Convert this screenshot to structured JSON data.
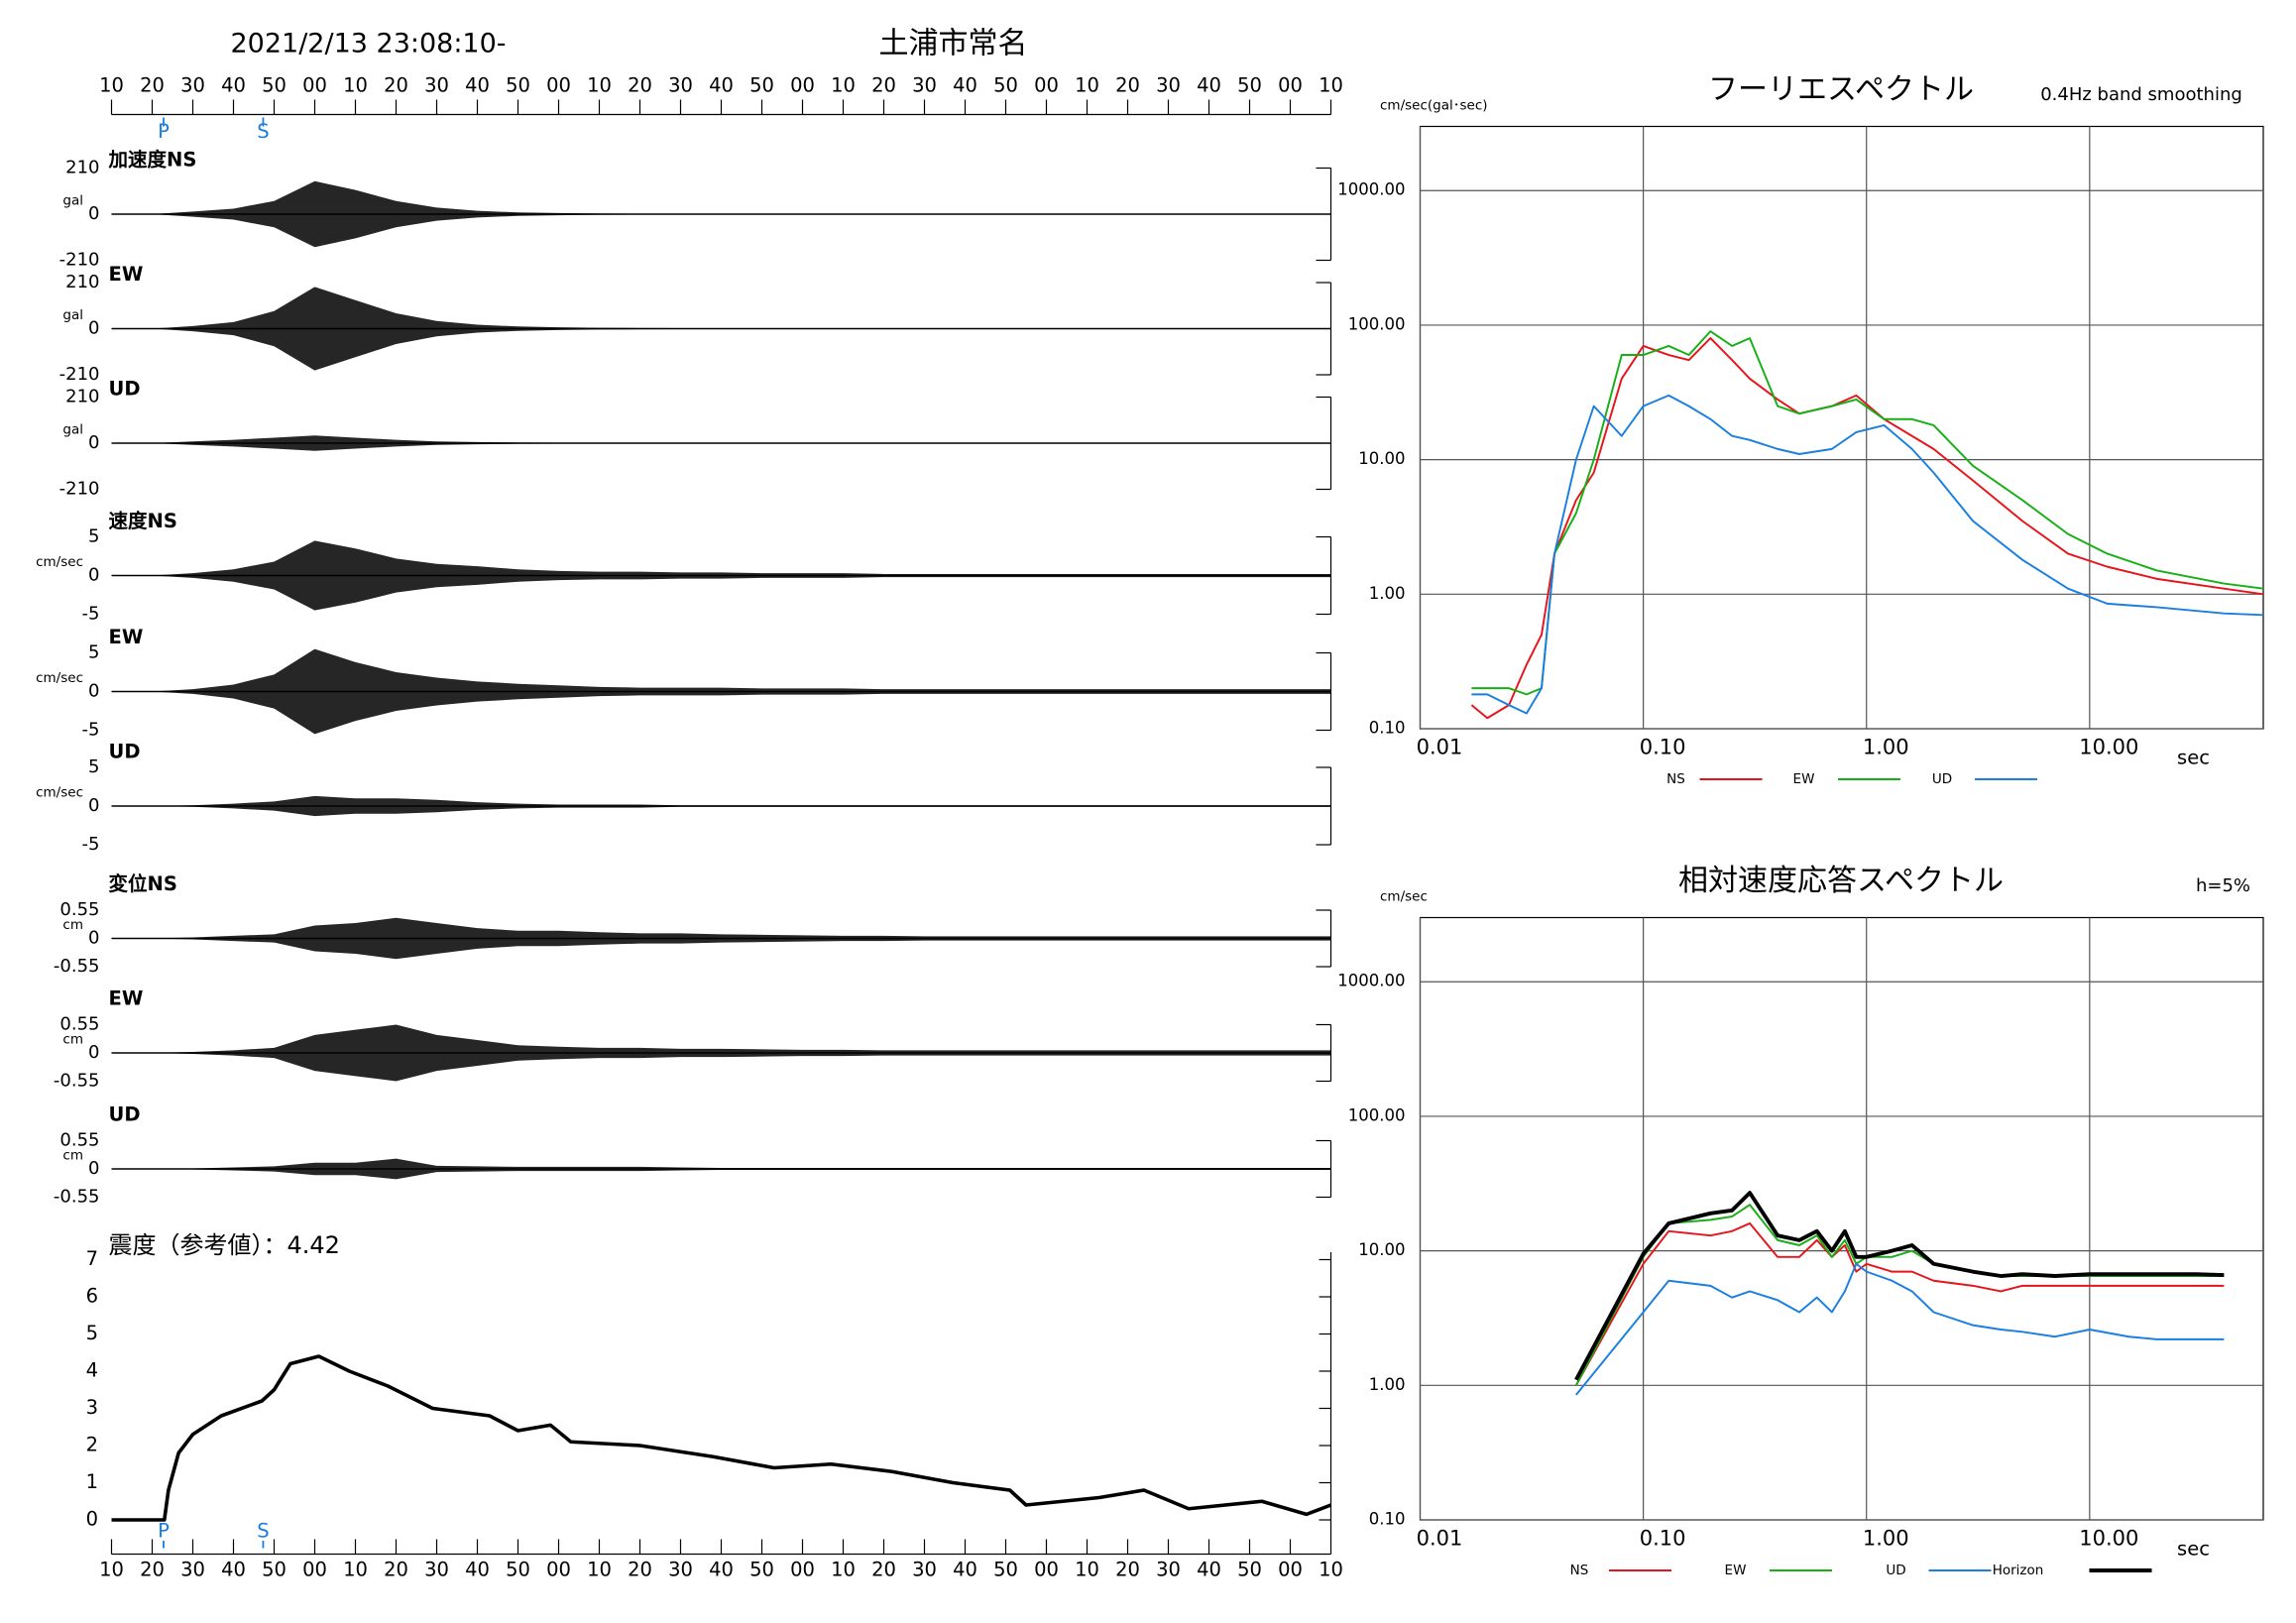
{
  "chart_data": [
    {
      "type": "waveform",
      "title": "土浦市常名",
      "subtitle": "2021/2/13 23:08:10-",
      "xlim": [
        0,
        300
      ],
      "xticks": [
        {
          "value": 0,
          "label": "10"
        },
        {
          "value": 10,
          "label": "20"
        },
        {
          "value": 20,
          "label": "30"
        },
        {
          "value": 30,
          "label": "40"
        },
        {
          "value": 40,
          "label": "50"
        },
        {
          "value": 50,
          "label": "00"
        },
        {
          "value": 60,
          "label": "10"
        },
        {
          "value": 70,
          "label": "20"
        },
        {
          "value": 80,
          "label": "30"
        },
        {
          "value": 90,
          "label": "40"
        },
        {
          "value": 100,
          "label": "50"
        },
        {
          "value": 110,
          "label": "00"
        },
        {
          "value": 120,
          "label": "10"
        },
        {
          "value": 130,
          "label": "20"
        },
        {
          "value": 140,
          "label": "30"
        },
        {
          "value": 150,
          "label": "40"
        },
        {
          "value": 160,
          "label": "50"
        },
        {
          "value": 170,
          "label": "00"
        },
        {
          "value": 180,
          "label": "10"
        },
        {
          "value": 190,
          "label": "20"
        },
        {
          "value": 200,
          "label": "30"
        },
        {
          "value": 210,
          "label": "40"
        },
        {
          "value": 220,
          "label": "50"
        },
        {
          "value": 230,
          "label": "00"
        },
        {
          "value": 240,
          "label": "10"
        },
        {
          "value": 250,
          "label": "20"
        },
        {
          "value": 260,
          "label": "30"
        },
        {
          "value": 270,
          "label": "40"
        },
        {
          "value": 280,
          "label": "50"
        },
        {
          "value": 290,
          "label": "00"
        },
        {
          "value": 300,
          "label": "10"
        }
      ],
      "markers": [
        {
          "label": "P",
          "value": 12.8
        },
        {
          "label": "S",
          "value": 37.3
        }
      ],
      "marker_color": "#1a7fe0",
      "color": "#000000",
      "x": [
        0,
        10,
        20,
        30,
        40,
        50,
        60,
        70,
        80,
        90,
        100,
        110,
        120,
        130,
        140,
        150,
        160,
        170,
        180,
        190,
        200,
        210,
        220,
        230,
        240,
        250,
        260,
        270,
        280,
        290,
        300
      ],
      "traces": [
        {
          "name": "加速度NS",
          "unit": "gal",
          "ylim": [
            -210,
            210
          ],
          "yticks": [
            210,
            0,
            -210
          ],
          "values": [
            0,
            0,
            12,
            25,
            60,
            150,
            110,
            60,
            30,
            15,
            8,
            5,
            3,
            2,
            1.5,
            1,
            1,
            0.5,
            0.5,
            0.5,
            0.5,
            0.5,
            0.5,
            0.5,
            0.5,
            0.5,
            0.5,
            0.5,
            0.5,
            0.5,
            0.5
          ]
        },
        {
          "name": "EW",
          "unit": "gal",
          "ylim": [
            -210,
            210
          ],
          "yticks": [
            210,
            0,
            -210
          ],
          "values": [
            0,
            0,
            12,
            30,
            80,
            190,
            130,
            70,
            35,
            18,
            10,
            6,
            4,
            3,
            2,
            1.5,
            1,
            1,
            0.5,
            0.5,
            0.5,
            0.5,
            0.5,
            0.5,
            0.5,
            0.5,
            0.5,
            0.5,
            0.5,
            0.5,
            0.5
          ]
        },
        {
          "name": "UD",
          "unit": "gal",
          "ylim": [
            -210,
            210
          ],
          "yticks": [
            210,
            0,
            -210
          ],
          "values": [
            0,
            0,
            8,
            15,
            25,
            35,
            25,
            15,
            8,
            5,
            3,
            2,
            1,
            1,
            0.5,
            0.5,
            0.5,
            0.5,
            0.5,
            0.5,
            0.5,
            0.5,
            0.5,
            0.5,
            0.5,
            0.5,
            0.5,
            0.5,
            0.5,
            0.5,
            0.5
          ]
        },
        {
          "name": "速度NS",
          "unit": "cm/sec",
          "ylim": [
            -5,
            5
          ],
          "yticks": [
            5,
            0,
            -5
          ],
          "values": [
            0,
            0,
            0.3,
            0.8,
            1.8,
            4.5,
            3.5,
            2.2,
            1.5,
            1.2,
            0.8,
            0.6,
            0.5,
            0.5,
            0.4,
            0.4,
            0.3,
            0.3,
            0.3,
            0.2,
            0.2,
            0.2,
            0.2,
            0.2,
            0.2,
            0.2,
            0.2,
            0.2,
            0.2,
            0.2,
            0.2
          ]
        },
        {
          "name": "EW",
          "unit": "cm/sec",
          "ylim": [
            -5,
            5
          ],
          "yticks": [
            5,
            0,
            -5
          ],
          "values": [
            0,
            0,
            0.3,
            0.9,
            2.2,
            5.5,
            3.8,
            2.5,
            1.8,
            1.3,
            1,
            0.8,
            0.6,
            0.5,
            0.5,
            0.5,
            0.4,
            0.4,
            0.4,
            0.3,
            0.3,
            0.3,
            0.3,
            0.3,
            0.3,
            0.3,
            0.3,
            0.3,
            0.3,
            0.3,
            0.3
          ]
        },
        {
          "name": "UD",
          "unit": "cm/sec",
          "ylim": [
            -5,
            5
          ],
          "yticks": [
            5,
            0,
            -5
          ],
          "values": [
            0,
            0,
            0.1,
            0.3,
            0.6,
            1.3,
            1,
            1,
            0.8,
            0.5,
            0.3,
            0.2,
            0.2,
            0.2,
            0.1,
            0.1,
            0.1,
            0.1,
            0.1,
            0.1,
            0.1,
            0.1,
            0.1,
            0.1,
            0.1,
            0.1,
            0.1,
            0.1,
            0.1,
            0.1,
            0.1
          ]
        },
        {
          "name": "変位NS",
          "unit": "cm",
          "ylim": [
            -0.55,
            0.55
          ],
          "yticks": [
            0.55,
            0,
            -0.55
          ],
          "values": [
            0,
            0,
            0.02,
            0.05,
            0.08,
            0.25,
            0.3,
            0.4,
            0.3,
            0.2,
            0.15,
            0.15,
            0.12,
            0.1,
            0.1,
            0.08,
            0.07,
            0.06,
            0.05,
            0.05,
            0.04,
            0.04,
            0.04,
            0.04,
            0.04,
            0.04,
            0.04,
            0.04,
            0.04,
            0.04,
            0.04
          ]
        },
        {
          "name": "EW",
          "unit": "cm",
          "ylim": [
            -0.55,
            0.55
          ],
          "yticks": [
            0.55,
            0,
            -0.55
          ],
          "values": [
            0,
            0,
            0.02,
            0.05,
            0.1,
            0.35,
            0.45,
            0.55,
            0.35,
            0.25,
            0.15,
            0.12,
            0.1,
            0.1,
            0.08,
            0.08,
            0.07,
            0.06,
            0.06,
            0.05,
            0.05,
            0.05,
            0.05,
            0.05,
            0.05,
            0.05,
            0.05,
            0.05,
            0.05,
            0.05,
            0.05
          ]
        },
        {
          "name": "UD",
          "unit": "cm",
          "ylim": [
            -0.55,
            0.55
          ],
          "yticks": [
            0.55,
            0,
            -0.55
          ],
          "values": [
            0,
            0,
            0.01,
            0.03,
            0.05,
            0.12,
            0.12,
            0.2,
            0.06,
            0.05,
            0.04,
            0.04,
            0.04,
            0.04,
            0.03,
            0.02,
            0.02,
            0.02,
            0.02,
            0.02,
            0.02,
            0.02,
            0.02,
            0.02,
            0.02,
            0.02,
            0.02,
            0.02,
            0.02,
            0.02,
            0.02
          ]
        }
      ]
    },
    {
      "type": "line",
      "title": "震度（参考値）：4.42",
      "color": "#000000",
      "ylim": [
        0,
        7
      ],
      "yticks": [
        0,
        1,
        2,
        3,
        4,
        5,
        6,
        7
      ],
      "x": [
        0,
        13,
        14,
        16.5,
        20,
        27,
        37,
        40,
        44,
        51,
        58.5,
        68,
        79,
        93,
        100,
        108,
        113,
        130,
        148,
        163,
        177,
        192,
        207,
        221,
        225,
        243,
        254,
        265,
        283,
        294,
        300
      ],
      "values": [
        0,
        0,
        0.8,
        1.8,
        2.3,
        2.8,
        3.2,
        3.5,
        4.2,
        4.4,
        4.0,
        3.6,
        3.0,
        2.8,
        2.4,
        2.55,
        2.1,
        2.0,
        1.7,
        1.4,
        1.5,
        1.3,
        1.0,
        0.8,
        0.4,
        0.6,
        0.8,
        0.3,
        0.5,
        0.15,
        0.4
      ]
    },
    {
      "type": "spectrum",
      "title": "フーリエスペクトル",
      "subtitle": "0.4Hz band smoothing",
      "y_label": "cm/sec(gal･sec)",
      "x_label": "sec",
      "log_x": true,
      "log_y": true,
      "grid": true,
      "xlim": [
        0.01,
        60
      ],
      "ylim": [
        0.1,
        3000
      ],
      "xticks": [
        0.01,
        {
          "value": 0.1,
          "label": "0.10"
        },
        {
          "value": 1,
          "label": "1.00"
        },
        {
          "value": 10,
          "label": "10.00"
        }
      ],
      "yticks": [
        {
          "value": 1000,
          "label": "1000.00"
        },
        {
          "value": 100,
          "label": "100.00"
        },
        {
          "value": 10,
          "label": "10.00"
        },
        {
          "value": 1,
          "label": "1.00"
        },
        {
          "value": 0.1,
          "label": "0.10"
        }
      ],
      "x": [
        0.017,
        0.02,
        0.025,
        0.03,
        0.035,
        0.04,
        0.05,
        0.06,
        0.08,
        0.1,
        0.13,
        0.16,
        0.2,
        0.25,
        0.3,
        0.4,
        0.5,
        0.7,
        0.9,
        1.2,
        1.6,
        2,
        3,
        5,
        8,
        12,
        20,
        40,
        60
      ],
      "series": [
        {
          "name": "NS",
          "color": "#e8141b",
          "values": [
            0.15,
            0.12,
            0.15,
            0.3,
            0.5,
            2,
            5,
            8,
            40,
            70,
            60,
            55,
            80,
            55,
            40,
            28,
            22,
            25,
            30,
            20,
            15,
            12,
            7,
            3.5,
            2,
            1.6,
            1.3,
            1.1,
            1.0
          ]
        },
        {
          "name": "EW",
          "color": "#16b016",
          "values": [
            0.2,
            0.2,
            0.2,
            0.18,
            0.2,
            2,
            4,
            10,
            60,
            60,
            70,
            60,
            90,
            70,
            80,
            25,
            22,
            25,
            28,
            20,
            20,
            18,
            9,
            5,
            2.8,
            2,
            1.5,
            1.2,
            1.1
          ]
        },
        {
          "name": "UD",
          "color": "#1a7fe0",
          "values": [
            0.18,
            0.18,
            0.15,
            0.13,
            0.2,
            2,
            10,
            25,
            15,
            25,
            30,
            25,
            20,
            15,
            14,
            12,
            11,
            12,
            16,
            18,
            12,
            8,
            3.5,
            1.8,
            1.1,
            0.85,
            0.8,
            0.72,
            0.7
          ]
        }
      ]
    },
    {
      "type": "spectrum",
      "title": "相対速度応答スペクトル",
      "subtitle": "h=5%",
      "y_label": "cm/sec",
      "x_label": "sec",
      "log_x": true,
      "log_y": true,
      "grid": true,
      "xlim": [
        0.01,
        60
      ],
      "ylim": [
        0.1,
        3000
      ],
      "xticks": [
        0.01,
        {
          "value": 0.1,
          "label": "0.10"
        },
        {
          "value": 1,
          "label": "1.00"
        },
        {
          "value": 10,
          "label": "10.00"
        }
      ],
      "yticks": [
        {
          "value": 1000,
          "label": "1000.00"
        },
        {
          "value": 100,
          "label": "100.00"
        },
        {
          "value": 10,
          "label": "10.00"
        },
        {
          "value": 1,
          "label": "1.00"
        },
        {
          "value": 0.1,
          "label": "0.10"
        }
      ],
      "x": [
        0.05,
        0.1,
        0.13,
        0.2,
        0.25,
        0.3,
        0.4,
        0.5,
        0.6,
        0.7,
        0.8,
        0.9,
        1,
        1.3,
        1.6,
        2,
        3,
        4,
        5,
        7,
        10,
        15,
        20,
        30,
        40
      ],
      "series": [
        {
          "name": "NS",
          "color": "#e8141b",
          "values": [
            1.0,
            8,
            14,
            13,
            14,
            16,
            9,
            9,
            12,
            9,
            11,
            7,
            8,
            7,
            7,
            6,
            5.5,
            5,
            5.5,
            5.5,
            5.5,
            5.5,
            5.5,
            5.5,
            5.5
          ]
        },
        {
          "name": "EW",
          "color": "#16b016",
          "values": [
            1.0,
            9,
            16,
            17,
            18,
            22,
            12,
            11,
            13,
            9,
            12,
            8,
            9,
            9,
            10,
            8,
            7,
            6.5,
            6.5,
            6.5,
            6.5,
            6.5,
            6.5,
            6.5,
            6.5
          ]
        },
        {
          "name": "UD",
          "color": "#1a7fe0",
          "values": [
            0.85,
            3.5,
            6,
            5.5,
            4.5,
            5,
            4.3,
            3.5,
            4.5,
            3.5,
            5,
            8,
            7,
            6,
            5,
            3.5,
            2.8,
            2.6,
            2.5,
            2.3,
            2.6,
            2.3,
            2.2,
            2.2,
            2.2
          ]
        },
        {
          "name": "Horizon",
          "color": "#000000",
          "values": [
            1.1,
            9.5,
            16,
            19,
            20,
            27,
            13,
            12,
            14,
            10,
            14,
            9,
            9,
            10,
            11,
            8,
            7,
            6.5,
            6.7,
            6.5,
            6.7,
            6.7,
            6.7,
            6.7,
            6.6
          ]
        }
      ]
    }
  ]
}
